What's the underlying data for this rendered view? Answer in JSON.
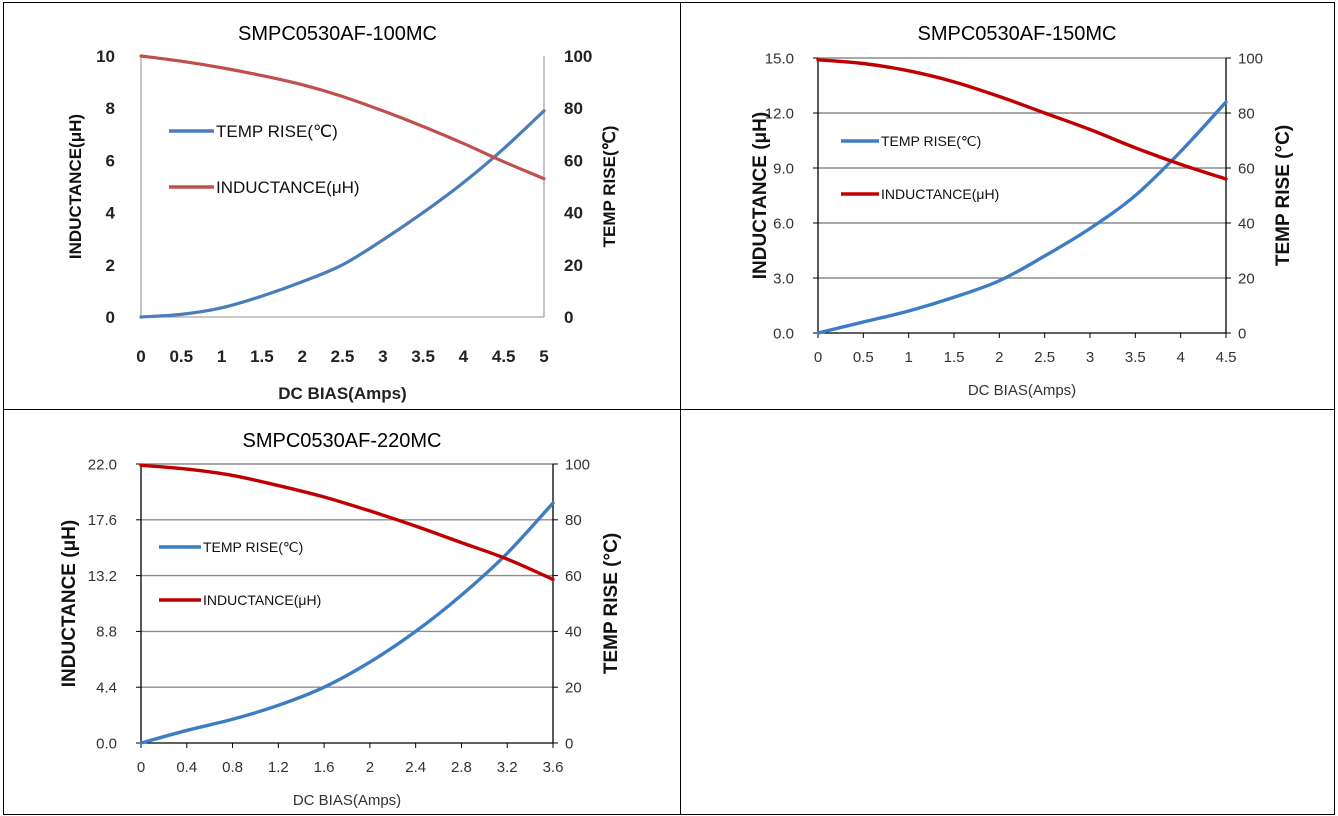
{
  "chart_data": [
    {
      "type": "line",
      "title": "SMPC0530AF-100MC",
      "xlabel": "DC  BIAS(Amps)",
      "ylabel": "INDUCTANCE(μH)",
      "y2label": "TEMP RISE(℃)",
      "x_ticks": [
        "0",
        "0.5",
        "1",
        "1.5",
        "2",
        "2.5",
        "3",
        "3.5",
        "4",
        "4.5",
        "5"
      ],
      "y_ticks": [
        "0",
        "2",
        "4",
        "6",
        "8",
        "10"
      ],
      "y2_ticks": [
        "0",
        "20",
        "40",
        "60",
        "80",
        "100"
      ],
      "xlim": [
        0,
        5
      ],
      "ylim": [
        0,
        10
      ],
      "y2lim": [
        0,
        100
      ],
      "grid": false,
      "legend": "inside-left",
      "series": [
        {
          "name": "TEMP RISE(℃)",
          "axis": "right",
          "color": "#4a7ebb",
          "x": [
            0,
            0.5,
            1,
            1.5,
            2,
            2.5,
            3,
            3.5,
            4,
            4.5,
            5
          ],
          "y": [
            0,
            1,
            3.5,
            8,
            13.5,
            20,
            29.5,
            40,
            51.5,
            64.5,
            79
          ]
        },
        {
          "name": "INDUCTANCE(μH)",
          "axis": "left",
          "color": "#c0504d",
          "x": [
            0,
            0.5,
            1,
            1.5,
            2,
            2.5,
            3,
            3.5,
            4,
            4.5,
            5
          ],
          "y": [
            10,
            9.8,
            9.55,
            9.25,
            8.9,
            8.45,
            7.9,
            7.3,
            6.65,
            5.95,
            5.3
          ]
        }
      ]
    },
    {
      "type": "line",
      "title": "SMPC0530AF-150MC",
      "xlabel": "DC BIAS(Amps)",
      "ylabel": "INDUCTANCE  (μH)",
      "y2label": "TEMP RISE (°C)",
      "x_ticks": [
        "0",
        "0.5",
        "1",
        "1.5",
        "2",
        "2.5",
        "3",
        "3.5",
        "4",
        "4.5"
      ],
      "y_ticks": [
        "0.0",
        "3.0",
        "6.0",
        "9.0",
        "12.0",
        "15.0"
      ],
      "y2_ticks": [
        "0",
        "20",
        "40",
        "60",
        "80",
        "100"
      ],
      "xlim": [
        0,
        4.5
      ],
      "ylim": [
        0,
        15
      ],
      "y2lim": [
        0,
        100
      ],
      "grid": true,
      "legend": "inside-left",
      "series": [
        {
          "name": "TEMP RISE(℃)",
          "axis": "right",
          "color": "#3c7dc4",
          "x": [
            0,
            0.5,
            1,
            1.5,
            2,
            2.5,
            3,
            3.5,
            4,
            4.5
          ],
          "y": [
            0,
            4,
            8,
            13,
            19,
            28,
            38,
            50,
            66,
            84
          ]
        },
        {
          "name": "INDUCTANCE(μH)",
          "axis": "left",
          "color": "#c00000",
          "x": [
            0,
            0.5,
            1,
            1.5,
            2,
            2.5,
            3,
            3.5,
            4,
            4.5
          ],
          "y": [
            14.9,
            14.7,
            14.3,
            13.7,
            12.9,
            12.0,
            11.1,
            10.1,
            9.2,
            8.4
          ]
        }
      ]
    },
    {
      "type": "line",
      "title": "SMPC0530AF-220MC",
      "xlabel": "DC BIAS(Amps)",
      "ylabel": "INDUCTANCE  (μH)",
      "y2label": "TEMP RISE (°C)",
      "x_ticks": [
        "0",
        "0.4",
        "0.8",
        "1.2",
        "1.6",
        "2",
        "2.4",
        "2.8",
        "3.2",
        "3.6"
      ],
      "y_ticks": [
        "0.0",
        "4.4",
        "8.8",
        "13.2",
        "17.6",
        "22.0"
      ],
      "y2_ticks": [
        "0",
        "20",
        "40",
        "60",
        "80",
        "100"
      ],
      "xlim": [
        0,
        3.6
      ],
      "ylim": [
        0,
        22
      ],
      "y2lim": [
        0,
        100
      ],
      "grid": true,
      "legend": "inside-left",
      "series": [
        {
          "name": "TEMP RISE(℃)",
          "axis": "right",
          "color": "#3c7dc4",
          "x": [
            0,
            0.4,
            0.8,
            1.2,
            1.6,
            2,
            2.4,
            2.8,
            3.2,
            3.6
          ],
          "y": [
            0,
            4.5,
            8.5,
            13.5,
            20,
            29,
            40,
            53,
            68,
            86
          ]
        },
        {
          "name": "INDUCTANCE(μH)",
          "axis": "left",
          "color": "#c00000",
          "x": [
            0,
            0.4,
            0.8,
            1.2,
            1.6,
            2,
            2.4,
            2.8,
            3.2,
            3.6
          ],
          "y": [
            21.9,
            21.6,
            21.1,
            20.3,
            19.4,
            18.3,
            17.1,
            15.8,
            14.5,
            12.9
          ]
        }
      ]
    }
  ]
}
